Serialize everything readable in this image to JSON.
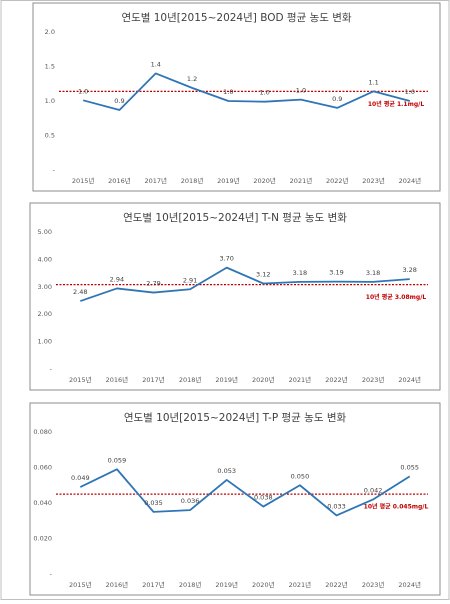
{
  "chart_data": [
    {
      "type": "line",
      "title": "연도별 10년[2015~2024년] BOD 평균 농도 변화",
      "categories": [
        "2015년",
        "2016년",
        "2017년",
        "2018년",
        "2019년",
        "2020년",
        "2021년",
        "2022년",
        "2023년",
        "2024년"
      ],
      "values": [
        1.01,
        0.87,
        1.4,
        1.19,
        1.0,
        0.99,
        1.02,
        0.9,
        1.14,
        1.0
      ],
      "value_labels": [
        "1.0",
        "0.9",
        "1.4",
        "1.2",
        "1.0",
        "1.0",
        "1.0",
        "0.9",
        "1.1",
        "1.0"
      ],
      "color": "#2e75b6",
      "ylim": [
        0,
        2
      ],
      "yticks": [
        {
          "value": 0,
          "label": "-"
        },
        {
          "value": 0.5,
          "label": "0.5"
        },
        {
          "value": 1,
          "label": "1.0"
        },
        {
          "value": 1.5,
          "label": "1.5"
        },
        {
          "value": 2,
          "label": "2.0"
        }
      ],
      "grid": false,
      "reference_line": {
        "value": 1.14,
        "label": "10년 평균 1.1mg/L",
        "color": "#c00000"
      }
    },
    {
      "type": "line",
      "title": "연도별 10년[2015~2024년] T-N 평균 농도 변화",
      "categories": [
        "2015년",
        "2016년",
        "2017년",
        "2018년",
        "2019년",
        "2020년",
        "2021년",
        "2022년",
        "2023년",
        "2024년"
      ],
      "values": [
        2.48,
        2.94,
        2.79,
        2.91,
        3.7,
        3.12,
        3.18,
        3.19,
        3.18,
        3.28
      ],
      "value_labels": [
        "2.48",
        "2.94",
        "2.79",
        "2.91",
        "3.70",
        "3.12",
        "3.18",
        "3.19",
        "3.18",
        "3.28"
      ],
      "color": "#2e75b6",
      "ylim": [
        0,
        5
      ],
      "yticks": [
        {
          "value": 0,
          "label": "-"
        },
        {
          "value": 1,
          "label": "1.00"
        },
        {
          "value": 2,
          "label": "2.00"
        },
        {
          "value": 3,
          "label": "3.00"
        },
        {
          "value": 4,
          "label": "4.00"
        },
        {
          "value": 5,
          "label": "5.00"
        }
      ],
      "grid": false,
      "reference_line": {
        "value": 3.08,
        "label": "10년 평균 3.08mg/L",
        "color": "#c00000"
      }
    },
    {
      "type": "line",
      "title": "연도별 10년[2015~2024년] T-P 평균 농도 변화",
      "categories": [
        "2015년",
        "2016년",
        "2017년",
        "2018년",
        "2019년",
        "2020년",
        "2021년",
        "2022년",
        "2023년",
        "2024년"
      ],
      "values": [
        0.049,
        0.059,
        0.035,
        0.036,
        0.053,
        0.038,
        0.05,
        0.033,
        0.042,
        0.055
      ],
      "value_labels": [
        "0.049",
        "0.059",
        "0.035",
        "0.036",
        "0.053",
        "0.038",
        "0.050",
        "0.033",
        "0.042",
        "0.055"
      ],
      "color": "#2e75b6",
      "ylim": [
        0,
        0.08
      ],
      "yticks": [
        {
          "value": 0,
          "label": "-"
        },
        {
          "value": 0.02,
          "label": "0.020"
        },
        {
          "value": 0.04,
          "label": "0.040"
        },
        {
          "value": 0.06,
          "label": "0.060"
        },
        {
          "value": 0.08,
          "label": "0.080"
        }
      ],
      "grid": false,
      "reference_line": {
        "value": 0.045,
        "label": "10년 평균 0.045mg/L",
        "color": "#c00000"
      }
    }
  ]
}
